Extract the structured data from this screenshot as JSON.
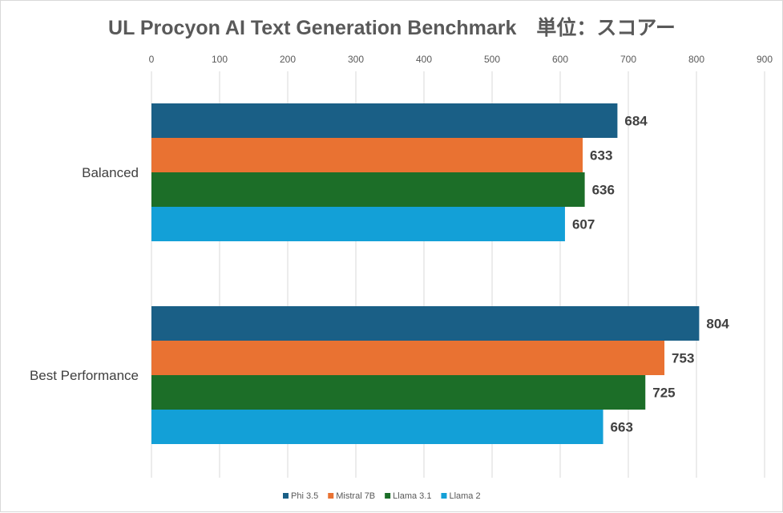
{
  "chart_data": {
    "type": "bar",
    "orientation": "horizontal",
    "title": "UL Procyon AI Text Generation Benchmark　単位：スコアー",
    "categories": [
      "Balanced",
      "Best Performance"
    ],
    "series": [
      {
        "name": "Phi 3.5",
        "color": "#1a5f86",
        "values": [
          684,
          804
        ]
      },
      {
        "name": "Mistral 7B",
        "color": "#e97232",
        "values": [
          633,
          753
        ]
      },
      {
        "name": "Llama 3.1",
        "color": "#1c6e28",
        "values": [
          636,
          725
        ]
      },
      {
        "name": "Llama 2",
        "color": "#13a0d7",
        "values": [
          607,
          663
        ]
      }
    ],
    "xlim": [
      0,
      900
    ],
    "xticks": [
      0,
      100,
      200,
      300,
      400,
      500,
      600,
      700,
      800,
      900
    ],
    "xlabel": "",
    "ylabel": "",
    "grid": true,
    "axis_position": "top",
    "legend": "bottom"
  }
}
